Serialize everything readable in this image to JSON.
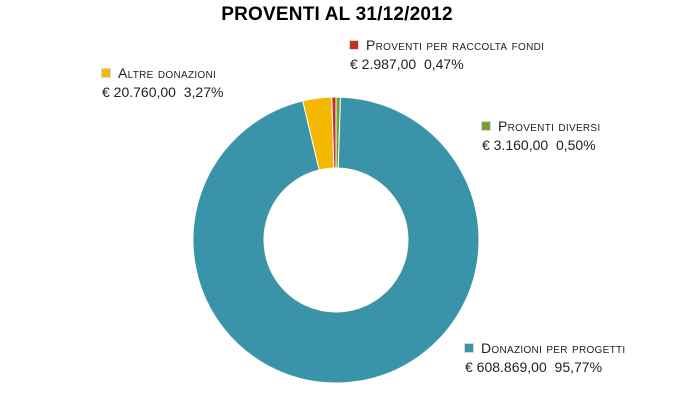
{
  "chart_data": {
    "type": "pie",
    "title": "PROVENTI  AL 31/12/2012",
    "slices": [
      {
        "label": "Donazioni per progetti",
        "amount": "€ 608.869,00",
        "percent_text": "95,77%",
        "value": 95.77,
        "color": "#3a93a9"
      },
      {
        "label": "Altre donazioni",
        "amount": "€ 20.760,00",
        "percent_text": "3,27%",
        "value": 3.27,
        "color": "#f5b800"
      },
      {
        "label": "Proventi per raccolta fondi",
        "amount": "€ 2.987,00",
        "percent_text": "0,47%",
        "value": 0.47,
        "color": "#c0302b"
      },
      {
        "label": "Proventi diversi",
        "amount": "€ 3.160,00",
        "percent_text": "0,50%",
        "value": 0.5,
        "color": "#77a033"
      }
    ],
    "hole_color": "#ffffff"
  }
}
